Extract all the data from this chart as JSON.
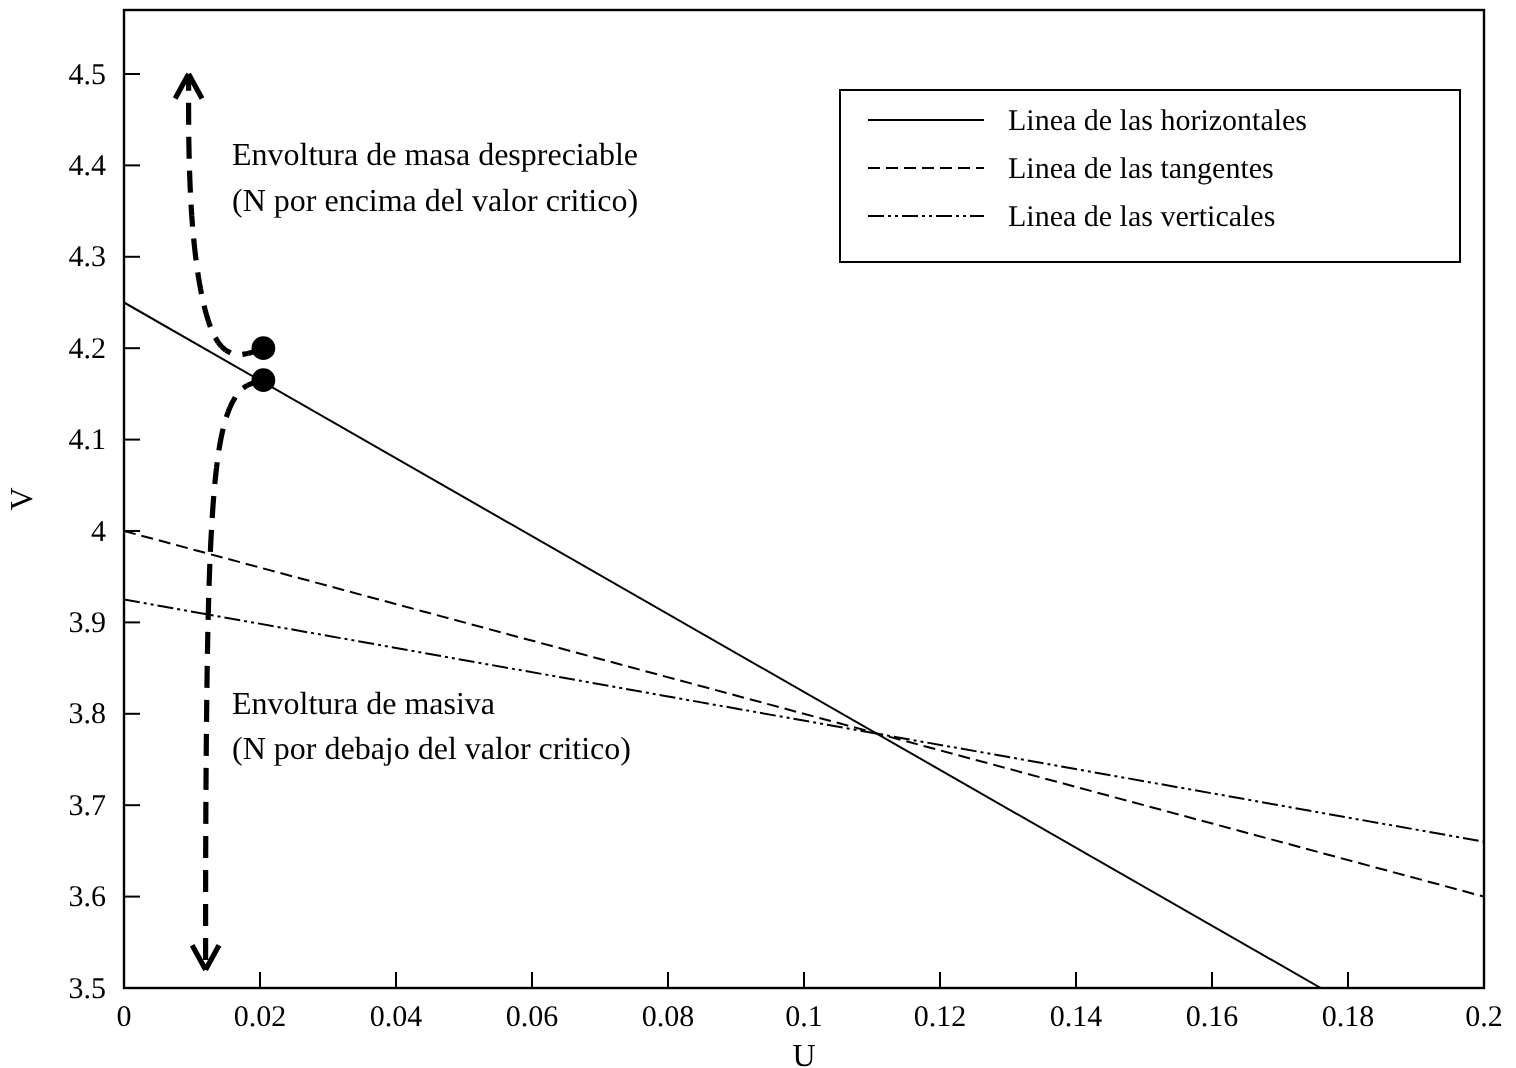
{
  "chart_data": {
    "type": "line",
    "xlabel": "U",
    "ylabel": "V",
    "xlim": [
      0,
      0.2
    ],
    "ylim": [
      3.5,
      4.57
    ],
    "xticks": [
      0,
      0.02,
      0.04,
      0.06,
      0.08,
      0.1,
      0.12,
      0.14,
      0.16,
      0.18,
      0.2
    ],
    "yticks": [
      3.5,
      3.6,
      3.7,
      3.8,
      3.9,
      4,
      4.1,
      4.2,
      4.3,
      4.4,
      4.5
    ],
    "legend": "top right",
    "grid": false,
    "series": [
      {
        "name": "Linea de las horizontales",
        "color": "#000000",
        "line_style": "solid",
        "x": [
          0,
          0.176
        ],
        "values": [
          4.25,
          3.5
        ]
      },
      {
        "name": "Linea de las tangentes",
        "color": "#000000",
        "line_style": "dashed",
        "x": [
          0,
          0.2
        ],
        "values": [
          4.0,
          3.6
        ]
      },
      {
        "name": "Linea de las verticales",
        "color": "#000000",
        "line_style": "dashdotdot",
        "x": [
          0,
          0.2
        ],
        "values": [
          3.925,
          3.66
        ]
      },
      {
        "type": "scatter",
        "color": "#000000",
        "marker": "circle",
        "x": [
          0.0205,
          0.0205
        ],
        "values": [
          4.2,
          4.165
        ]
      }
    ],
    "annotations": [
      "Envoltura de masa despreciable",
      "(N por encima del valor critico)",
      "Envoltura de masiva",
      "(N por debajo del valor critico)"
    ]
  }
}
